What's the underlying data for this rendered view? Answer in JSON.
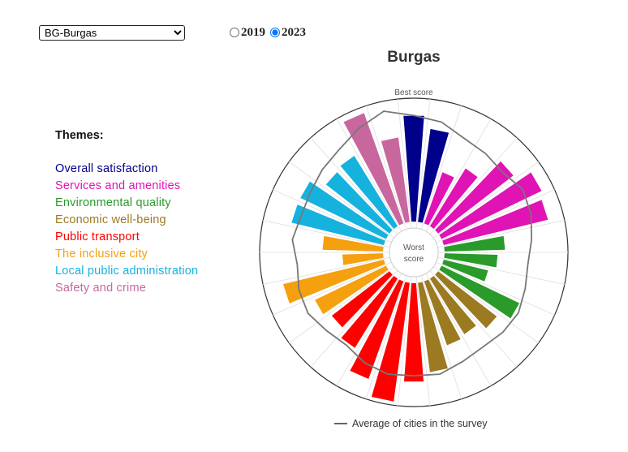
{
  "controls": {
    "city_selected": "BG-Burgas",
    "years": [
      {
        "label": "2019",
        "selected": false
      },
      {
        "label": "2023",
        "selected": true
      }
    ]
  },
  "themes": {
    "title": "Themes:",
    "items": [
      {
        "label": "Overall satisfaction",
        "color": "#00008b"
      },
      {
        "label": "Services and amenities",
        "color": "#e013b4"
      },
      {
        "label": "Environmental quality",
        "color": "#2a9a2a"
      },
      {
        "label": "Economic well-being",
        "color": "#9c7a22"
      },
      {
        "label": "Public transport",
        "color": "#ff0000"
      },
      {
        "label": "The inclusive city",
        "color": "#f5a00f"
      },
      {
        "label": "Local public administration",
        "color": "#16b2de"
      },
      {
        "label": "Safety and crime",
        "color": "#c8679e"
      }
    ]
  },
  "legend": {
    "average_label": "Average of cities in the survey"
  },
  "chart_data": {
    "type": "radial-bar",
    "title": "Burgas",
    "center_label": [
      "Worst",
      "score"
    ],
    "outer_label": "Best score",
    "range": [
      0,
      1
    ],
    "series": [
      {
        "name": "Burgas",
        "values": [
          0.86,
          0.76,
          0.44,
          0.55,
          0.77,
          0.9,
          0.87,
          0.49,
          0.43,
          0.37,
          0.7,
          0.6,
          0.53,
          0.55,
          0.73,
          0.8,
          0.97,
          0.84,
          0.66,
          0.59,
          0.64,
          0.84,
          0.33,
          0.49,
          0.77,
          0.77,
          0.65,
          0.67,
          0.95,
          0.69
        ]
      },
      {
        "name": "Average of cities in the survey",
        "values": [
          0.86,
          0.83,
          0.76,
          0.74,
          0.72,
          0.77,
          0.75,
          0.71,
          0.68,
          0.7,
          0.73,
          0.72,
          0.7,
          0.72,
          0.76,
          0.75,
          0.76,
          0.73,
          0.68,
          0.7,
          0.74,
          0.73,
          0.7,
          0.74,
          0.71,
          0.72,
          0.75,
          0.78,
          0.85,
          0.92
        ]
      }
    ],
    "bar_themes": [
      0,
      0,
      1,
      1,
      1,
      1,
      1,
      2,
      2,
      2,
      2,
      3,
      3,
      3,
      3,
      4,
      4,
      4,
      4,
      4,
      5,
      5,
      5,
      5,
      6,
      6,
      6,
      6,
      7,
      7
    ]
  }
}
